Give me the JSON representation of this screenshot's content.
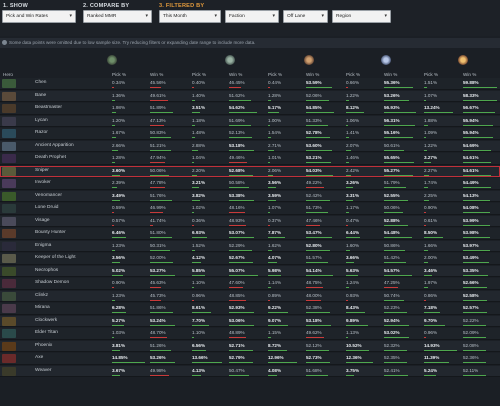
{
  "filters": {
    "show": {
      "title": "1. SHOW",
      "value": "Pick and Win Rates"
    },
    "compare": {
      "title": "2. COMPARE BY",
      "value": "Ranked MMR"
    },
    "filtered": {
      "title": "3. FILTERED BY",
      "time": "This Month",
      "faction": "Faction",
      "lane": "Off Lane",
      "region": "Region"
    }
  },
  "notice": "Some data points were omitted due to low sample size. Try reducing filters or expanding date range to include more data.",
  "header": {
    "hero": "Hero",
    "pick": "Pick %",
    "win": "Win %"
  },
  "rows": [
    {
      "name": "Chen",
      "c": [
        "0.34%",
        "45.56%",
        "0.40%",
        "46.45%",
        "0.44%",
        "53.59%",
        "0.66%",
        "55.36%",
        "1.51%",
        "59.88%"
      ]
    },
    {
      "name": "Bane",
      "c": [
        "1.36%",
        "49.61%",
        "1.40%",
        "51.62%",
        "1.28%",
        "52.06%",
        "1.22%",
        "53.26%",
        "1.07%",
        "58.33%"
      ]
    },
    {
      "name": "Beastmaster",
      "c": [
        "1.98%",
        "51.89%",
        "3.51%",
        "54.62%",
        "5.17%",
        "54.85%",
        "8.12%",
        "56.93%",
        "13.24%",
        "56.67%"
      ]
    },
    {
      "name": "Lycan",
      "c": [
        "1.20%",
        "47.13%",
        "1.18%",
        "51.69%",
        "1.00%",
        "51.33%",
        "1.06%",
        "56.31%",
        "1.88%",
        "55.94%"
      ]
    },
    {
      "name": "Razor",
      "c": [
        "1.67%",
        "50.83%",
        "1.48%",
        "52.13%",
        "1.54%",
        "52.78%",
        "1.41%",
        "55.16%",
        "1.09%",
        "55.94%"
      ]
    },
    {
      "name": "Ancient Apparition",
      "c": [
        "2.66%",
        "51.21%",
        "2.88%",
        "53.18%",
        "2.71%",
        "53.60%",
        "2.07%",
        "50.61%",
        "1.22%",
        "54.69%"
      ]
    },
    {
      "name": "Death Prophet",
      "c": [
        "1.28%",
        "47.94%",
        "1.04%",
        "49.46%",
        "1.01%",
        "53.21%",
        "1.46%",
        "55.65%",
        "3.27%",
        "54.61%"
      ]
    },
    {
      "name": "Sniper",
      "c": [
        "3.60%",
        "50.06%",
        "2.20%",
        "52.68%",
        "2.06%",
        "54.03%",
        "2.42%",
        "55.27%",
        "2.27%",
        "54.61%"
      ]
    },
    {
      "name": "Invoker",
      "c": [
        "2.39%",
        "47.78%",
        "3.21%",
        "50.58%",
        "3.56%",
        "49.22%",
        "3.26%",
        "51.79%",
        "1.74%",
        "54.49%"
      ]
    },
    {
      "name": "Venomancer",
      "c": [
        "3.49%",
        "51.76%",
        "3.82%",
        "53.38%",
        "3.59%",
        "52.42%",
        "3.31%",
        "52.55%",
        "2.25%",
        "54.13%"
      ]
    },
    {
      "name": "Lone Druid",
      "c": [
        "0.59%",
        "46.99%",
        "1.02%",
        "48.16%",
        "1.07%",
        "51.73%",
        "1.17%",
        "50.06%",
        "0.90%",
        "54.08%"
      ]
    },
    {
      "name": "Visage",
      "c": [
        "0.57%",
        "41.74%",
        "0.36%",
        "48.93%",
        "0.37%",
        "47.46%",
        "0.47%",
        "52.88%",
        "0.61%",
        "53.99%"
      ]
    },
    {
      "name": "Bounty Hunter",
      "c": [
        "6.46%",
        "51.80%",
        "6.93%",
        "53.07%",
        "7.87%",
        "53.47%",
        "6.44%",
        "54.48%",
        "8.50%",
        "53.98%"
      ]
    },
    {
      "name": "Enigma",
      "c": [
        "1.23%",
        "50.31%",
        "1.52%",
        "52.29%",
        "1.62%",
        "52.80%",
        "1.60%",
        "50.86%",
        "1.66%",
        "53.97%"
      ]
    },
    {
      "name": "Keeper of the Light",
      "c": [
        "3.56%",
        "52.00%",
        "4.12%",
        "52.67%",
        "4.07%",
        "51.57%",
        "3.66%",
        "51.42%",
        "2.00%",
        "53.49%"
      ]
    },
    {
      "name": "Necrophos",
      "c": [
        "5.02%",
        "53.27%",
        "5.85%",
        "55.07%",
        "5.98%",
        "54.14%",
        "5.63%",
        "54.57%",
        "3.46%",
        "53.35%"
      ]
    },
    {
      "name": "Shadow Demon",
      "c": [
        "0.90%",
        "45.63%",
        "1.10%",
        "47.60%",
        "1.14%",
        "48.75%",
        "1.24%",
        "47.25%",
        "1.97%",
        "52.66%"
      ]
    },
    {
      "name": "Clinkz",
      "c": [
        "1.23%",
        "45.73%",
        "0.96%",
        "48.85%",
        "0.89%",
        "48.00%",
        "0.93%",
        "50.74%",
        "0.86%",
        "52.58%"
      ]
    },
    {
      "name": "Mirana",
      "c": [
        "6.28%",
        "51.86%",
        "8.61%",
        "52.93%",
        "9.22%",
        "52.38%",
        "8.43%",
        "52.23%",
        "7.18%",
        "52.57%"
      ]
    },
    {
      "name": "Clockwerk",
      "c": [
        "5.27%",
        "53.24%",
        "7.70%",
        "53.06%",
        "9.07%",
        "53.18%",
        "9.89%",
        "52.94%",
        "9.70%",
        "52.22%"
      ]
    },
    {
      "name": "Elder Titan",
      "c": [
        "1.03%",
        "48.70%",
        "1.10%",
        "48.89%",
        "1.15%",
        "49.62%",
        "1.13%",
        "53.02%",
        "0.96%",
        "52.09%"
      ]
    },
    {
      "name": "Phoenix",
      "c": [
        "3.81%",
        "51.26%",
        "6.56%",
        "52.71%",
        "8.72%",
        "52.12%",
        "10.52%",
        "52.32%",
        "14.93%",
        "52.08%"
      ]
    },
    {
      "name": "Axe",
      "c": [
        "14.85%",
        "53.26%",
        "13.66%",
        "52.79%",
        "12.96%",
        "52.73%",
        "12.36%",
        "52.35%",
        "11.39%",
        "52.36%"
      ]
    },
    {
      "name": "Weaver",
      "c": [
        "3.67%",
        "49.98%",
        "4.13%",
        "50.47%",
        "4.08%",
        "51.68%",
        "3.75%",
        "52.41%",
        "5.24%",
        "52.11%"
      ]
    }
  ],
  "colors": {
    "green": "#4ea74e",
    "red": "#c83a3a",
    "orange": "#e29a3c"
  }
}
